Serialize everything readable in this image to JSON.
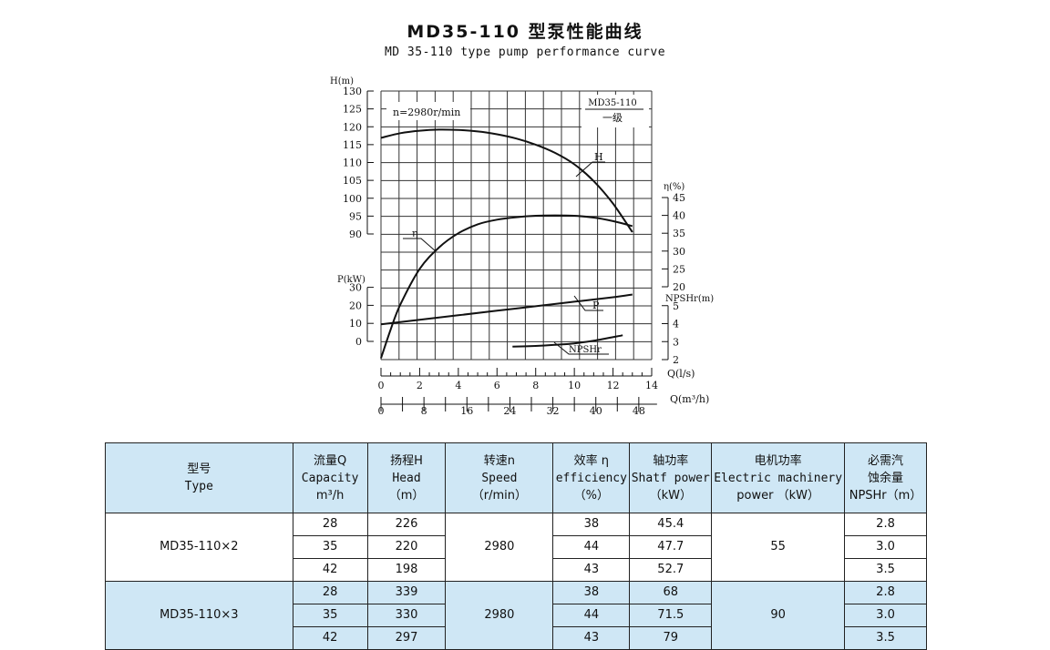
{
  "title_cn": "MD35-110 型泵性能曲线",
  "title_en": "MD 35-110 type pump performance curve",
  "chart_data": {
    "type": "line",
    "annotations": {
      "speed": "n=2980r/min",
      "model_box": "MD35-110",
      "model_box_sub": "一级"
    },
    "x_axes": [
      {
        "label": "Q(l/s)",
        "range": [
          0,
          14
        ],
        "ticks": [
          "0",
          "2",
          "4",
          "6",
          "8",
          "10",
          "12",
          "14"
        ]
      },
      {
        "label": "Q(m³/h)",
        "range": [
          0,
          50.4
        ],
        "ticks": [
          "0",
          "8",
          "16",
          "24",
          "32",
          "40",
          "48"
        ]
      }
    ],
    "y_axes": [
      {
        "label": "H(m)",
        "range": [
          90,
          130
        ],
        "ticks": [
          "130",
          "125",
          "120",
          "115",
          "110",
          "105",
          "100",
          "95",
          "90"
        ]
      },
      {
        "label": "η(%)",
        "range": [
          20,
          45
        ],
        "ticks": [
          "45",
          "40",
          "35",
          "30",
          "25",
          "20"
        ]
      },
      {
        "label": "P(kW)",
        "range": [
          0,
          30
        ],
        "ticks": [
          "30",
          "20",
          "10",
          "0"
        ]
      },
      {
        "label": "NPSHr(m)",
        "range": [
          2,
          5
        ],
        "ticks": [
          "5",
          "4",
          "3",
          "2"
        ]
      }
    ],
    "series": [
      {
        "name": "H",
        "axis": "H(m)",
        "x": [
          0,
          1,
          2,
          3,
          4,
          5,
          6,
          7,
          8,
          9,
          10,
          11,
          12,
          13
        ],
        "y": [
          116.9,
          118.2,
          118.9,
          119.2,
          119.1,
          118.7,
          117.9,
          116.7,
          115,
          112.7,
          109.5,
          104.8,
          98.5,
          90.5
        ]
      },
      {
        "name": "η",
        "axis": "η(%)",
        "x": [
          0,
          0.5,
          1,
          2,
          3,
          4,
          5,
          6,
          7,
          8,
          9,
          10,
          11,
          12,
          13
        ],
        "y": [
          0,
          8,
          15,
          25,
          31,
          35,
          37.5,
          38.8,
          39.5,
          39.9,
          40,
          39.9,
          39.4,
          38.4,
          37
        ]
      },
      {
        "name": "P",
        "axis": "P(kW)",
        "x": [
          0,
          2,
          4,
          6,
          8,
          10,
          12,
          13
        ],
        "y": [
          9.5,
          12,
          14.5,
          17,
          19.5,
          22,
          24.5,
          26
        ]
      },
      {
        "name": "NPSHr",
        "axis": "NPSHr(m)",
        "x": [
          6.8,
          8,
          9,
          10,
          11,
          12.5
        ],
        "y": [
          2.72,
          2.76,
          2.82,
          2.9,
          3.05,
          3.35
        ]
      }
    ],
    "grid": true
  },
  "table": {
    "headers": [
      {
        "cn": "型号",
        "en": "Type"
      },
      {
        "cn": "流量Q",
        "en": "Capacity",
        "unit": "m³/h"
      },
      {
        "cn": "扬程H",
        "en": "Head",
        "unit": "（m）"
      },
      {
        "cn": "转速n",
        "en": "Speed",
        "unit": "（r/min）"
      },
      {
        "cn": "效率 η",
        "en": "efficiency",
        "unit": "（%）"
      },
      {
        "cn": "轴功率",
        "en": "Shatf power",
        "unit": "（kW）"
      },
      {
        "cn": "电机功率",
        "en": "Electric machinery",
        "unit": "power （kW）"
      },
      {
        "cn": "必需汽",
        "en": "蚀余量",
        "unit": "NPSHr（m）"
      }
    ],
    "groups": [
      {
        "type": "MD35-110×2",
        "speed": "2980",
        "motor": "55",
        "rows": [
          {
            "q": "28",
            "h": "226",
            "eff": "38",
            "shaft": "45.4",
            "npsh": "2.8"
          },
          {
            "q": "35",
            "h": "220",
            "eff": "44",
            "shaft": "47.7",
            "npsh": "3.0"
          },
          {
            "q": "42",
            "h": "198",
            "eff": "43",
            "shaft": "52.7",
            "npsh": "3.5"
          }
        ]
      },
      {
        "type": "MD35-110×3",
        "speed": "2980",
        "motor": "90",
        "rows": [
          {
            "q": "28",
            "h": "339",
            "eff": "38",
            "shaft": "68",
            "npsh": "2.8"
          },
          {
            "q": "35",
            "h": "330",
            "eff": "44",
            "shaft": "71.5",
            "npsh": "3.0"
          },
          {
            "q": "42",
            "h": "297",
            "eff": "43",
            "shaft": "79",
            "npsh": "3.5"
          }
        ]
      }
    ]
  }
}
